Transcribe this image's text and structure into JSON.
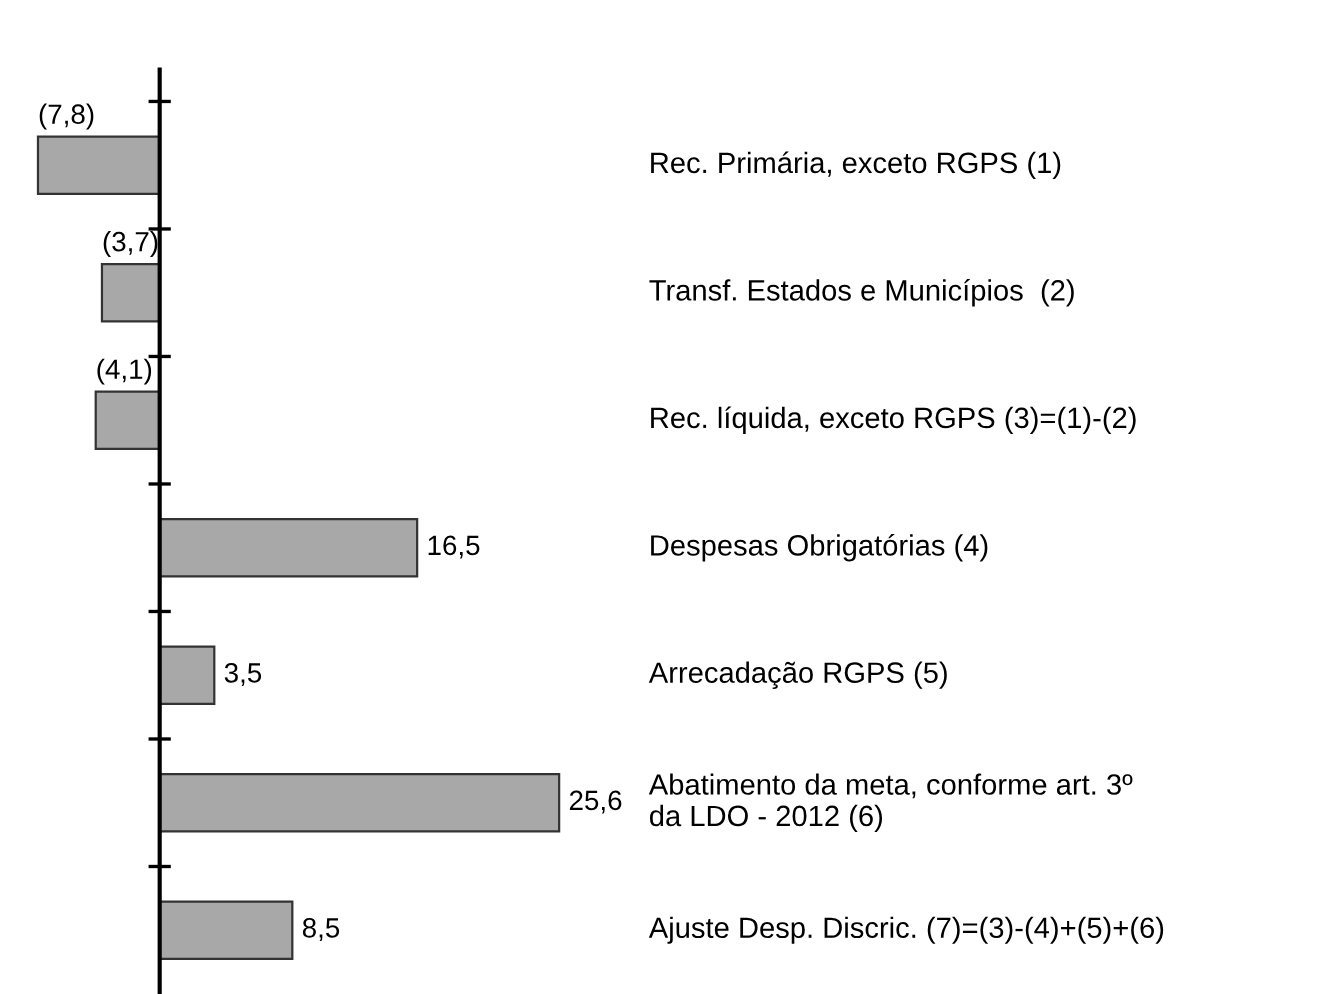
{
  "chart_data": {
    "type": "bar",
    "orientation": "horizontal",
    "categories": [
      "Rec. Primária, exceto RGPS (1)",
      "Transf. Estados e Municípios  (2)",
      "Rec. líquida, exceto RGPS (3)=(1)-(2)",
      "Despesas Obrigatórias (4)",
      "Arrecadação RGPS (5)",
      "Abatimento da meta, conforme art. 3º\nda LDO - 2012 (6)",
      "Ajuste Desp. Discric. (7)=(3)-(4)+(5)+(6)"
    ],
    "values": [
      -7.8,
      -3.7,
      -4.1,
      16.5,
      3.5,
      25.6,
      8.5
    ],
    "value_labels": [
      "(7,8)",
      "(3,7)",
      "(4,1)",
      "16,5",
      "3,5",
      "25,6",
      "8,5"
    ],
    "color": "#a8a8a8",
    "grid": false,
    "legend": false
  }
}
